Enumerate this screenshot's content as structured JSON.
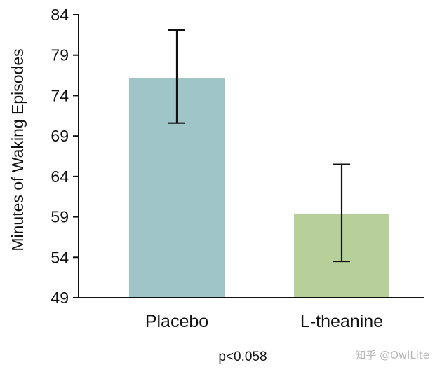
{
  "chart_data": {
    "type": "bar",
    "categories": [
      "Placebo",
      "L-theanine"
    ],
    "values": [
      76.2,
      59.4
    ],
    "error_bars": [
      {
        "low": 70.6,
        "high": 82.1
      },
      {
        "low": 53.5,
        "high": 65.5
      }
    ],
    "colors": [
      "#9fc5c9",
      "#b7cf98"
    ],
    "ylabel": "Minutes of Waking Episodes",
    "xlabel": "",
    "ylim": [
      49,
      84
    ],
    "yticks": [
      49,
      54,
      59,
      64,
      69,
      74,
      79,
      84
    ],
    "grid": false,
    "annotation": "p<0.058"
  },
  "watermark": "知乎 @OwlLite"
}
